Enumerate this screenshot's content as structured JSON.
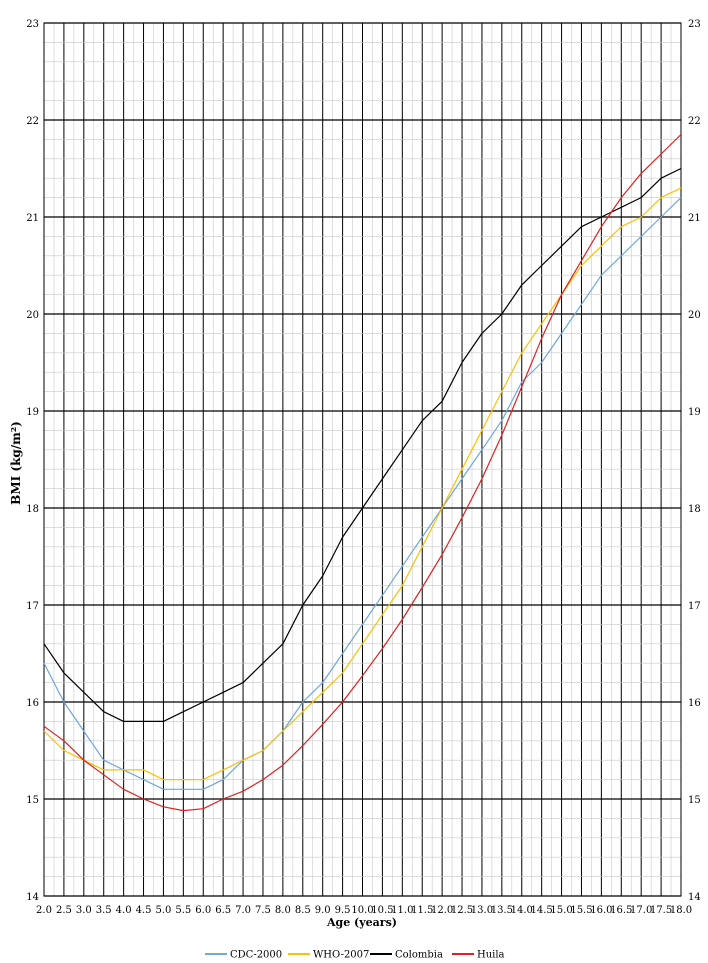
{
  "chart_data": {
    "type": "line",
    "xlabel": "Age (years)",
    "ylabel": "BMI (kg/m²)",
    "xlim": [
      2.0,
      18.0
    ],
    "ylim": [
      14,
      23
    ],
    "x_tick_labels": [
      "2.0",
      "2.5",
      "3.0",
      "3.5",
      "4.0",
      "4.5",
      "5.0",
      "5.5",
      "6.0",
      "6.5",
      "7.0",
      "7.5",
      "8.0",
      "8.5",
      "9.0",
      "9.5",
      "10.0",
      "10.5",
      "11.0",
      "11.5",
      "12.0",
      "12.5",
      "13.0",
      "13.5",
      "14.0",
      "14.5",
      "15.0",
      "15.5",
      "16.0",
      "16.5",
      "17.0",
      "17.5",
      "18.0"
    ],
    "y_tick_labels": [
      "14",
      "15",
      "16",
      "17",
      "18",
      "19",
      "20",
      "21",
      "22",
      "23"
    ],
    "grid": true,
    "legend_position": "bottom",
    "x": [
      2.0,
      2.5,
      3.0,
      3.5,
      4.0,
      4.5,
      5.0,
      5.5,
      6.0,
      6.5,
      7.0,
      7.5,
      8.0,
      8.5,
      9.0,
      9.5,
      10.0,
      10.5,
      11.0,
      11.5,
      12.0,
      12.5,
      13.0,
      13.5,
      14.0,
      14.5,
      15.0,
      15.5,
      16.0,
      16.5,
      17.0,
      17.5,
      18.0
    ],
    "series": [
      {
        "name": "CDC-2000",
        "color": "#6fa8dc",
        "values": [
          16.4,
          16.0,
          15.7,
          15.4,
          15.3,
          15.2,
          15.1,
          15.1,
          15.1,
          15.2,
          15.4,
          15.5,
          15.7,
          16.0,
          16.2,
          16.5,
          16.8,
          17.1,
          17.4,
          17.7,
          18.0,
          18.3,
          18.6,
          18.9,
          19.3,
          19.5,
          19.8,
          20.1,
          20.4,
          20.6,
          20.8,
          21.0,
          21.2
        ]
      },
      {
        "name": "WHO-2007",
        "color": "#ffc000",
        "values": [
          15.7,
          15.5,
          15.4,
          15.3,
          15.3,
          15.3,
          15.2,
          15.2,
          15.2,
          15.3,
          15.4,
          15.5,
          15.7,
          15.9,
          16.1,
          16.3,
          16.6,
          16.9,
          17.2,
          17.6,
          18.0,
          18.4,
          18.8,
          19.2,
          19.6,
          19.9,
          20.2,
          20.5,
          20.7,
          20.9,
          21.0,
          21.2,
          21.3
        ]
      },
      {
        "name": "Colombia",
        "color": "#000000",
        "values": [
          16.6,
          16.3,
          16.1,
          15.9,
          15.8,
          15.8,
          15.8,
          15.9,
          16.0,
          16.1,
          16.2,
          16.4,
          16.6,
          17.0,
          17.3,
          17.7,
          18.0,
          18.3,
          18.6,
          18.9,
          19.1,
          19.5,
          19.8,
          20.0,
          20.3,
          20.5,
          20.7,
          20.9,
          21.0,
          21.1,
          21.2,
          21.4,
          21.5
        ]
      },
      {
        "name": "Huila",
        "color": "#e02020",
        "values": [
          15.75,
          15.6,
          15.4,
          15.25,
          15.1,
          15.0,
          14.92,
          14.88,
          14.9,
          15.0,
          15.08,
          15.2,
          15.35,
          15.55,
          15.77,
          16.0,
          16.27,
          16.55,
          16.85,
          17.18,
          17.52,
          17.9,
          18.3,
          18.75,
          19.25,
          19.75,
          20.2,
          20.55,
          20.9,
          21.2,
          21.45,
          21.65,
          21.85
        ]
      }
    ]
  }
}
